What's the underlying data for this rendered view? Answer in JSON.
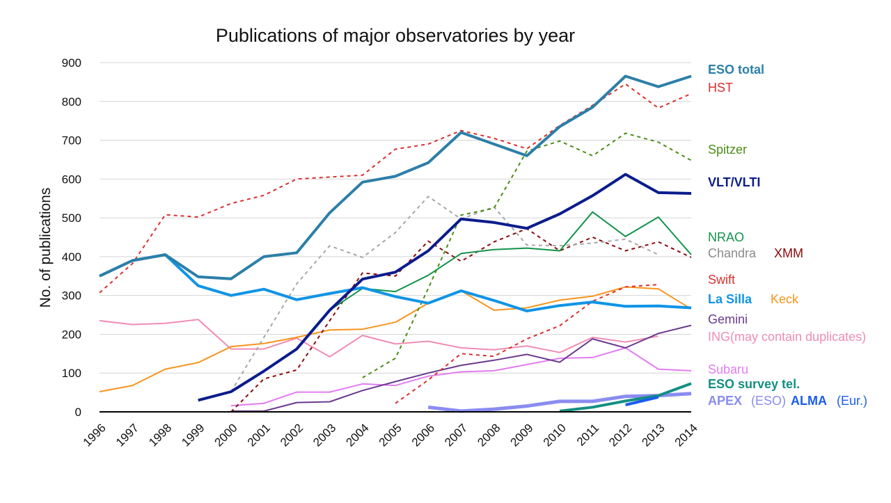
{
  "chart_data": {
    "type": "line",
    "title": "Publications of major observatories by year",
    "xlabel": "",
    "ylabel": "No. of publications",
    "ylim": [
      0,
      900
    ],
    "yticks": [
      0,
      100,
      200,
      300,
      400,
      500,
      600,
      700,
      800,
      900
    ],
    "grid": "horizontal",
    "legend_position": "right",
    "x": [
      1996,
      1997,
      1998,
      1999,
      2000,
      2001,
      2002,
      2003,
      2004,
      2005,
      2006,
      2007,
      2008,
      2009,
      2010,
      2011,
      2012,
      2013,
      2014
    ],
    "series": [
      {
        "name": "ING (may contain duplicates)",
        "color": "#f08cb4",
        "width": 2,
        "dash": "",
        "values": [
          235,
          225,
          228,
          238,
          162,
          162,
          190,
          142,
          197,
          175,
          182,
          165,
          160,
          170,
          153,
          192,
          180,
          195,
          null
        ]
      },
      {
        "name": "Subaru",
        "color": "#e27cf0",
        "width": 2,
        "dash": "",
        "values": [
          null,
          null,
          null,
          null,
          16,
          22,
          51,
          51,
          72,
          68,
          92,
          103,
          106,
          122,
          138,
          140,
          165,
          110,
          106
        ]
      },
      {
        "name": "Gemini",
        "color": "#6a3a8e",
        "width": 2,
        "dash": "",
        "values": [
          null,
          null,
          null,
          null,
          2,
          2,
          24,
          26,
          55,
          78,
          100,
          120,
          133,
          148,
          128,
          188,
          165,
          202,
          223
        ]
      },
      {
        "name": "Keck",
        "color": "#f7941d",
        "width": 2,
        "dash": "",
        "values": [
          52,
          68,
          110,
          127,
          168,
          176,
          192,
          211,
          213,
          231,
          280,
          312,
          262,
          268,
          288,
          298,
          322,
          317,
          265
        ]
      },
      {
        "name": "Swift",
        "color": "#d9302d",
        "width": 2,
        "dash": "5,5",
        "values": [
          null,
          null,
          null,
          null,
          null,
          null,
          null,
          null,
          null,
          22,
          82,
          150,
          143,
          188,
          222,
          285,
          322,
          328,
          null
        ]
      },
      {
        "name": "XMM",
        "color": "#8b0a0a",
        "width": 2,
        "dash": "5,5",
        "values": [
          null,
          null,
          null,
          null,
          0,
          85,
          108,
          235,
          358,
          350,
          440,
          388,
          438,
          472,
          415,
          450,
          415,
          438,
          398
        ]
      },
      {
        "name": "Chandra",
        "color": "#a6a6a6",
        "width": 2,
        "dash": "5,5",
        "values": [
          null,
          null,
          null,
          null,
          52,
          192,
          330,
          428,
          398,
          462,
          555,
          497,
          528,
          430,
          428,
          435,
          445,
          405,
          null
        ]
      },
      {
        "name": "NRAO",
        "color": "#12934a",
        "width": 2,
        "dash": "",
        "values": [
          null,
          null,
          null,
          null,
          null,
          null,
          null,
          262,
          318,
          310,
          352,
          408,
          418,
          422,
          415,
          515,
          452,
          502,
          405
        ]
      },
      {
        "name": "Spitzer",
        "color": "#4a8c16",
        "width": 2,
        "dash": "5,5",
        "values": [
          null,
          null,
          null,
          null,
          null,
          null,
          null,
          null,
          88,
          138,
          318,
          507,
          525,
          672,
          698,
          660,
          718,
          695,
          648
        ]
      },
      {
        "name": "HST",
        "color": "#d9302d",
        "width": 2,
        "dash": "5,5",
        "values": [
          307,
          382,
          508,
          502,
          537,
          558,
          600,
          605,
          610,
          677,
          690,
          725,
          705,
          678,
          738,
          790,
          845,
          783,
          820
        ]
      },
      {
        "name": "La Silla",
        "color": "#0f94e6",
        "width": 4,
        "dash": "",
        "values": [
          350,
          390,
          405,
          325,
          300,
          316,
          289,
          305,
          320,
          297,
          280,
          312,
          287,
          260,
          274,
          283,
          272,
          273,
          268
        ]
      },
      {
        "name": "ESO total",
        "color": "#2c7fa8",
        "width": 4,
        "dash": "",
        "values": [
          350,
          390,
          405,
          348,
          343,
          400,
          410,
          513,
          592,
          607,
          642,
          720,
          690,
          660,
          735,
          785,
          865,
          838,
          865
        ]
      },
      {
        "name": "VLT/VLTI",
        "color": "#0b1c8c",
        "width": 4,
        "dash": "",
        "values": [
          null,
          null,
          null,
          30,
          52,
          105,
          162,
          262,
          342,
          360,
          415,
          497,
          488,
          473,
          510,
          557,
          612,
          565,
          563
        ]
      },
      {
        "name": "APEX (ESO)",
        "color": "#8a8cf0",
        "width": 5,
        "dash": "",
        "values": [
          null,
          null,
          null,
          null,
          null,
          null,
          null,
          null,
          null,
          null,
          12,
          2,
          7,
          15,
          27,
          27,
          40,
          42,
          47
        ]
      },
      {
        "name": "ESO survey tel.",
        "color": "#138f82",
        "width": 4,
        "dash": "",
        "values": [
          null,
          null,
          null,
          null,
          null,
          null,
          null,
          null,
          null,
          null,
          null,
          null,
          null,
          null,
          2,
          12,
          28,
          42,
          73
        ]
      },
      {
        "name": "ALMA (Eur.)",
        "color": "#1a5cf0",
        "width": 4,
        "dash": "",
        "values": [
          null,
          null,
          null,
          null,
          null,
          null,
          null,
          null,
          null,
          null,
          null,
          null,
          null,
          null,
          null,
          null,
          18,
          38,
          null
        ]
      }
    ],
    "legend": [
      {
        "text": "ESO total",
        "color": "#2c7fa8",
        "bold": true
      },
      {
        "text": "HST",
        "color": "#d9302d",
        "bold": false
      },
      {
        "text": "Spitzer",
        "color": "#4a8c16",
        "bold": false
      },
      {
        "text": "VLT/VLTI",
        "color": "#0b1c8c",
        "bold": true
      },
      {
        "text": "NRAO",
        "color": "#12934a",
        "bold": false
      },
      {
        "text": "Chandra",
        "color": "#8a8a8a",
        "bold": false
      },
      {
        "text": "XMM",
        "color": "#8b0a0a",
        "bold": false
      },
      {
        "text": "Swift",
        "color": "#d9302d",
        "bold": false
      },
      {
        "text": "La Silla",
        "color": "#0f94e6",
        "bold": true
      },
      {
        "text": "Keck",
        "color": "#f7941d",
        "bold": false
      },
      {
        "text": "Gemini",
        "color": "#6a3a8e",
        "bold": false
      },
      {
        "text": "ING",
        "color": "#f08cb4",
        "bold": false
      },
      {
        "text": "(may contain duplicates)",
        "color": "#f08cb4",
        "bold": false
      },
      {
        "text": "Subaru",
        "color": "#e27cf0",
        "bold": false
      },
      {
        "text": "ESO survey tel.",
        "color": "#138f82",
        "bold": true
      },
      {
        "text": "APEX",
        "color": "#8a8cf0",
        "bold": true
      },
      {
        "text": "(ESO)",
        "color": "#8a8cf0",
        "bold": false
      },
      {
        "text": "ALMA",
        "color": "#1a5cf0",
        "bold": true
      },
      {
        "text": "(Eur.)",
        "color": "#1a5cf0",
        "bold": false
      }
    ]
  }
}
